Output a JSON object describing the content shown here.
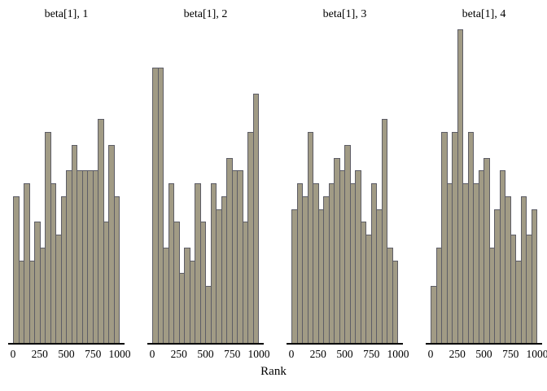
{
  "figure": {
    "xlabel": "Rank",
    "background": "#ffffff"
  },
  "style": {
    "bar_fill": "#a19b85",
    "bar_border": "#5d5d66",
    "axis_color": "#000000",
    "text_color": "#000000"
  },
  "chart_data": {
    "type": "bar",
    "subtype": "rank-histogram-facets",
    "xlabel": "Rank",
    "x_range": [
      0,
      1000
    ],
    "bins_per_panel": 20,
    "bin_width": 50,
    "x_tick_labels": [
      "0",
      "250",
      "500",
      "750",
      "1000"
    ],
    "grid": false,
    "y_axis_shown": false,
    "ymax_count": 25,
    "panels": [
      {
        "title": "beta[1], 1",
        "counts": [
          12,
          7,
          13,
          7,
          10,
          8,
          17,
          13,
          9,
          12,
          14,
          16,
          14,
          14,
          14,
          14,
          18,
          10,
          16,
          12
        ]
      },
      {
        "title": "beta[1], 2",
        "counts": [
          22,
          22,
          8,
          13,
          10,
          6,
          8,
          7,
          13,
          10,
          5,
          13,
          11,
          12,
          15,
          14,
          14,
          10,
          17,
          20
        ]
      },
      {
        "title": "beta[1], 3",
        "counts": [
          11,
          13,
          12,
          17,
          13,
          11,
          12,
          13,
          15,
          14,
          16,
          13,
          14,
          10,
          9,
          13,
          11,
          18,
          8,
          7
        ]
      },
      {
        "title": "beta[1], 4",
        "counts": [
          5,
          8,
          17,
          13,
          17,
          25,
          13,
          17,
          13,
          14,
          15,
          8,
          11,
          14,
          12,
          9,
          7,
          12,
          9,
          11
        ]
      }
    ]
  }
}
